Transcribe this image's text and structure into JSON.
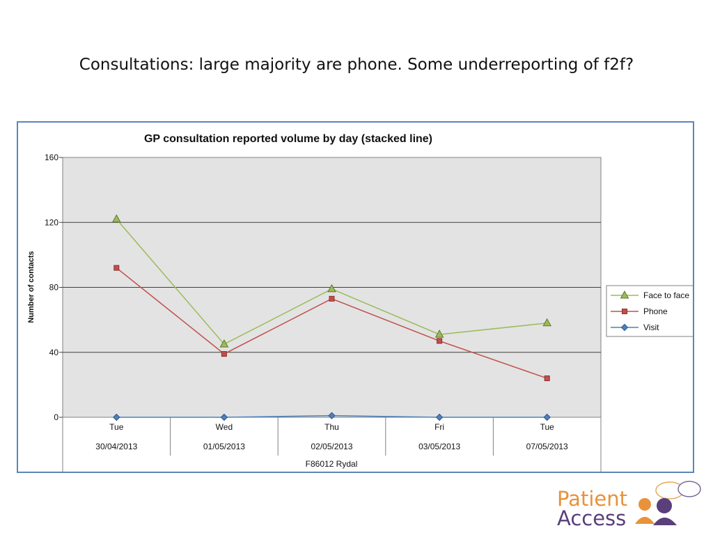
{
  "slide": {
    "title": "Consultations:  large majority are phone. Some underreporting of f2f?"
  },
  "chart_data": {
    "type": "line",
    "title": "GP consultation reported volume by day (stacked line)",
    "ylabel": "Number of contacts",
    "xlabel": "F86012 Rydal",
    "ylim": [
      0,
      160
    ],
    "yticks": [
      0,
      40,
      80,
      120,
      160
    ],
    "categories": [
      {
        "day": "Tue",
        "date": "30/04/2013"
      },
      {
        "day": "Wed",
        "date": "01/05/2013"
      },
      {
        "day": "Thu",
        "date": "02/05/2013"
      },
      {
        "day": "Fri",
        "date": "03/05/2013"
      },
      {
        "day": "Tue",
        "date": "07/05/2013"
      }
    ],
    "series": [
      {
        "name": "Face to face",
        "values": [
          122,
          45,
          79,
          51,
          58
        ],
        "color": "#9bbb59",
        "marker": "triangle"
      },
      {
        "name": "Phone",
        "values": [
          92,
          39,
          73,
          47,
          24
        ],
        "color": "#c0504d",
        "marker": "square"
      },
      {
        "name": "Visit",
        "values": [
          0,
          0,
          1,
          0,
          0
        ],
        "color": "#4f81bd",
        "marker": "diamond"
      }
    ],
    "grid": true,
    "legend": "right"
  },
  "logo": {
    "word1": "Patient",
    "word2": "Access",
    "color1": "#e8923a",
    "color2": "#5a3f7a"
  }
}
